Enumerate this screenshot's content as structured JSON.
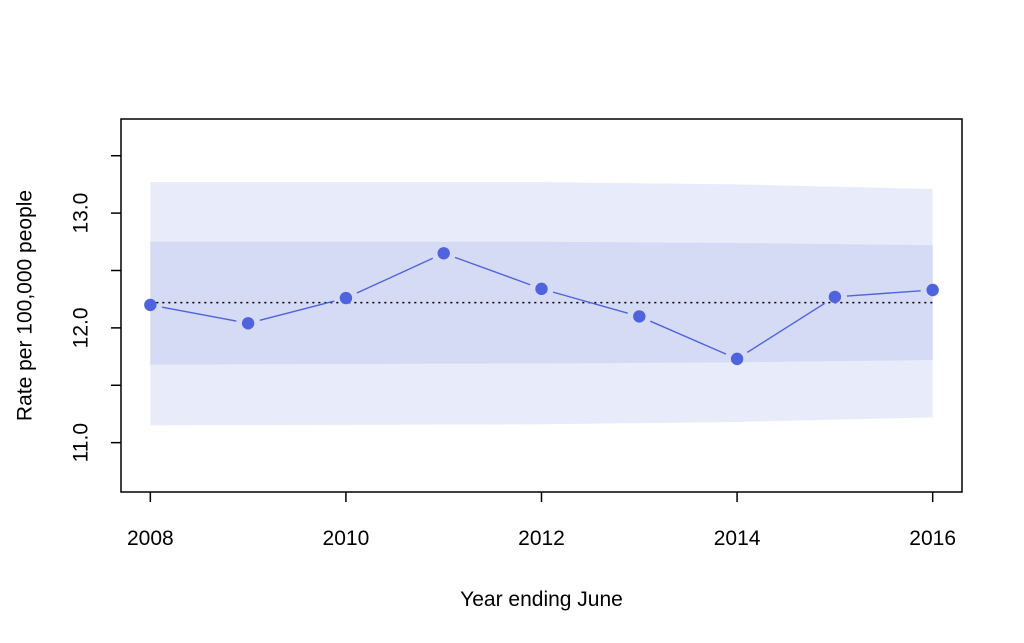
{
  "chart_data": {
    "type": "line",
    "title": "",
    "xlabel": "Year ending June",
    "ylabel": "Rate per 100,000 people",
    "xlim": [
      2007.7,
      2016.3
    ],
    "ylim": [
      10.57,
      13.82
    ],
    "x_ticks": [
      2008,
      2010,
      2012,
      2014,
      2016
    ],
    "x_tick_labels": [
      "2008",
      "2010",
      "2012",
      "2014",
      "2016"
    ],
    "y_ticks": [
      11.0,
      11.5,
      12.0,
      12.5,
      13.0,
      13.5
    ],
    "y_tick_labels": [
      "11.0",
      "",
      "12.0",
      "",
      "13.0",
      ""
    ],
    "grid": false,
    "legend": "none",
    "series": [
      {
        "x": [
          2008,
          2009,
          2010,
          2011,
          2012,
          2013,
          2014,
          2015,
          2016
        ],
        "values": [
          12.2,
          12.04,
          12.26,
          12.65,
          12.34,
          12.1,
          11.73,
          12.27,
          12.33
        ],
        "color": "#4f63dc"
      }
    ],
    "reference_line": {
      "value": 12.22,
      "style": "dotted",
      "color": "#000000"
    },
    "bands": [
      {
        "x": [
          2008,
          2012,
          2014,
          2016
        ],
        "lower": [
          11.15,
          11.16,
          11.18,
          11.22
        ],
        "upper": [
          13.27,
          13.27,
          13.25,
          13.21
        ],
        "color": "#e8ebfa"
      },
      {
        "x": [
          2008,
          2012,
          2014,
          2016
        ],
        "lower": [
          11.68,
          11.69,
          11.7,
          11.72
        ],
        "upper": [
          12.75,
          12.75,
          12.74,
          12.72
        ],
        "color": "#d5daf5"
      }
    ]
  }
}
